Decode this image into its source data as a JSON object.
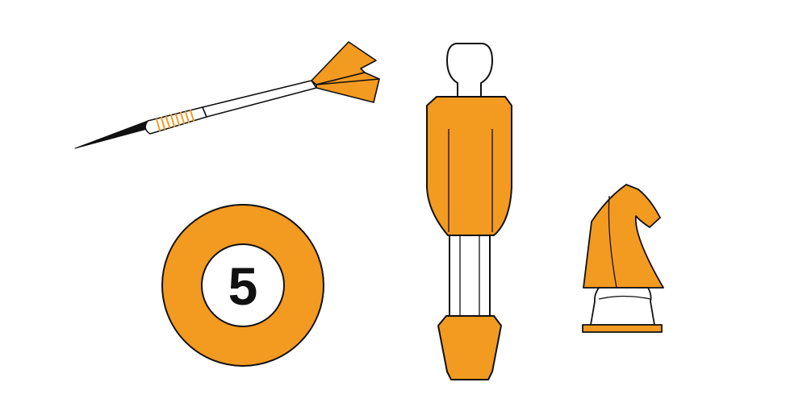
{
  "colors": {
    "accent": "#F39A21",
    "outline": "#111111",
    "background": "#FFFFFF"
  },
  "icons": [
    "dart-icon",
    "billiard-ball-icon",
    "foosball-player-icon",
    "chess-knight-icon"
  ],
  "billiard_ball": {
    "number": "5"
  }
}
